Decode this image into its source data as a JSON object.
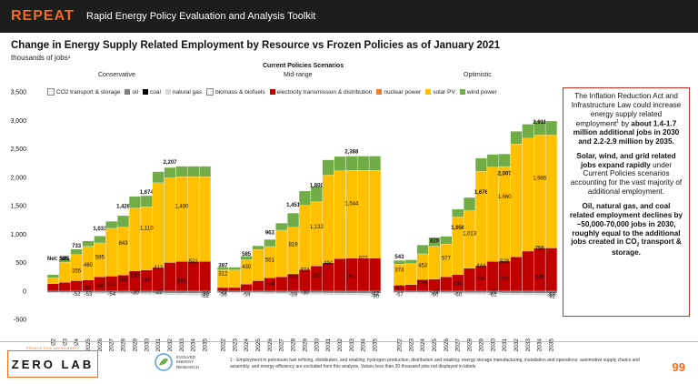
{
  "header": {
    "brand": "REPEAT",
    "subtitle": "Rapid Energy Policy Evaluation and Analysis Toolkit"
  },
  "title": "Change in Energy Supply Related Employment by Resource vs Frozen Policies as of January 2021",
  "units": "thousands of jobs¹",
  "scenarios_title": "Current Policies Scenarios",
  "colors": {
    "co2": "#ffffff",
    "oil": "#7f7f7f",
    "coal": "#000000",
    "gas": "#d9d9d9",
    "bio": "#f2f2f2",
    "elec": "#c00000",
    "nuclear": "#ed7d31",
    "solar": "#ffc000",
    "wind": "#70ad47",
    "accent": "#f26b21",
    "callout_border": "#c9302c"
  },
  "legend": [
    {
      "key": "co2",
      "label": "CO2 transport & storage"
    },
    {
      "key": "oil",
      "label": "oil"
    },
    {
      "key": "coal",
      "label": "coal"
    },
    {
      "key": "gas",
      "label": "natural gas"
    },
    {
      "key": "bio",
      "label": "biomass & biofuels"
    },
    {
      "key": "elec",
      "label": "electricity transmission & distribution"
    },
    {
      "key": "nuclear",
      "label": "nuclear power"
    },
    {
      "key": "solar",
      "label": "solar PV"
    },
    {
      "key": "wind",
      "label": "wind power"
    }
  ],
  "chart_data": {
    "type": "bar",
    "stacked": true,
    "waterfall_style": true,
    "ylim": [
      -500,
      3500
    ],
    "yticks": [
      -500,
      0,
      500,
      1000,
      1500,
      2000,
      2500,
      3000,
      3500
    ],
    "ytick_labels": [
      "-500",
      "0",
      "500",
      "1,000",
      "1,500",
      "2,000",
      "2,500",
      "3,000",
      "3,500"
    ],
    "categories": [
      "2022",
      "2023",
      "2024",
      "2025",
      "2026",
      "2027",
      "2028",
      "2029",
      "2030",
      "2031",
      "2032",
      "2033",
      "2034",
      "2035"
    ],
    "net_label": "Net: 505",
    "panels": [
      {
        "name": "Conservative",
        "net": [
          null,
          505,
          733,
          null,
          1033,
          null,
          1428,
          null,
          1674,
          null,
          2207,
          null,
          null,
          null
        ],
        "bars": [
          {
            "wind": 55,
            "solar": 100,
            "elec": 130,
            "nuclear": 20
          },
          {
            "wind": 55,
            "solar": 355,
            "elec": 150,
            "nuclear": 20
          },
          {
            "wind": 94,
            "solar": 460,
            "elec": 180
          },
          {
            "wind": 94,
            "solar": 595,
            "elec": 190
          },
          {
            "wind": 121,
            "solar": 595,
            "elec": 250
          },
          {
            "wind": 121,
            "solar": 843,
            "elec": 260
          },
          {
            "wind": 201,
            "solar": 843,
            "elec": 280
          },
          {
            "wind": 201,
            "solar": 1110,
            "elec": 350
          },
          {
            "wind": 195,
            "solar": 1110,
            "elec": 370
          },
          {
            "wind": 195,
            "solar": 1490,
            "elec": 412
          },
          {
            "wind": 181,
            "solar": 1490,
            "elec": 500
          },
          {
            "wind": 181,
            "solar": 1490,
            "elec": 521
          },
          {
            "wind": 181,
            "solar": 1490,
            "elec": 521
          },
          {
            "wind": 181,
            "solar": 1490,
            "elec": 521
          }
        ],
        "data_labels": [
          {
            "x": "2024",
            "y": 355,
            "text": "355"
          },
          {
            "x": "2024",
            "y": -52,
            "text": "-52"
          },
          {
            "x": "2025",
            "y": 460,
            "text": "460"
          },
          {
            "x": "2025",
            "y": -53,
            "text": "-53"
          },
          {
            "x": "2025",
            "y": 55,
            "text": "55"
          },
          {
            "x": "2026",
            "y": 595,
            "text": "595"
          },
          {
            "x": "2026",
            "y": 94,
            "text": "94"
          },
          {
            "x": "2027",
            "y": 121,
            "text": "121"
          },
          {
            "x": "2027",
            "y": -54,
            "text": "-54"
          },
          {
            "x": "2028",
            "y": 843,
            "text": "843"
          },
          {
            "x": "2028",
            "y": 201,
            "text": "201"
          },
          {
            "x": "2029",
            "y": -30,
            "text": "-30"
          },
          {
            "x": "2029",
            "y": 280,
            "text": "280"
          },
          {
            "x": "2030",
            "y": 1110,
            "text": "1,110"
          },
          {
            "x": "2030",
            "y": 195,
            "text": "195"
          },
          {
            "x": "2031",
            "y": 412,
            "text": "412"
          },
          {
            "x": "2031",
            "y": -22,
            "text": "-22"
          },
          {
            "x": "2033",
            "y": 1490,
            "text": "1,490"
          },
          {
            "x": "2033",
            "y": 181,
            "text": "181"
          },
          {
            "x": "2034",
            "y": 521,
            "text": "521"
          },
          {
            "x": "2035",
            "y": -82,
            "text": "-82"
          },
          {
            "x": "2035",
            "y": -50,
            "text": "-50"
          }
        ]
      },
      {
        "name": "Mid-range",
        "net": [
          387,
          null,
          585,
          null,
          963,
          null,
          1451,
          null,
          1800,
          null,
          null,
          2388,
          null,
          null
        ],
        "bars": [
          {
            "wind": 43,
            "solar": 312,
            "elec": 60
          },
          {
            "wind": 43,
            "solar": 312,
            "elec": 60
          },
          {
            "wind": 63,
            "solar": 430,
            "elec": 120
          },
          {
            "wind": 63,
            "solar": 551,
            "elec": 180
          },
          {
            "wind": 124,
            "solar": 551,
            "elec": 230
          },
          {
            "wind": 124,
            "solar": 819,
            "elec": 250
          },
          {
            "wind": 250,
            "solar": 819,
            "elec": 300
          },
          {
            "wind": 250,
            "solar": 1132,
            "elec": 374
          },
          {
            "wind": 267,
            "solar": 1132,
            "elec": 440
          },
          {
            "wind": 267,
            "solar": 1544,
            "elec": 494
          },
          {
            "wind": 250,
            "solar": 1544,
            "elec": 570
          },
          {
            "wind": 250,
            "solar": 1544,
            "elec": 577
          },
          {
            "wind": 250,
            "solar": 1544,
            "elec": 577
          },
          {
            "wind": 250,
            "solar": 1544,
            "elec": 577
          }
        ],
        "data_labels": [
          {
            "x": "2022",
            "y": 312,
            "text": "312"
          },
          {
            "x": "2022",
            "y": -21,
            "text": "-21"
          },
          {
            "x": "2022",
            "y": -56,
            "text": "-56"
          },
          {
            "x": "2024",
            "y": 430,
            "text": "430"
          },
          {
            "x": "2024",
            "y": -59,
            "text": "-59"
          },
          {
            "x": "2026",
            "y": 551,
            "text": "551"
          },
          {
            "x": "2026",
            "y": 124,
            "text": "124"
          },
          {
            "x": "2028",
            "y": 819,
            "text": "819"
          },
          {
            "x": "2028",
            "y": 250,
            "text": "250"
          },
          {
            "x": "2028",
            "y": -59,
            "text": "-59"
          },
          {
            "x": "2029",
            "y": 374,
            "text": "374"
          },
          {
            "x": "2029",
            "y": -30,
            "text": "-30"
          },
          {
            "x": "2030",
            "y": 1132,
            "text": "1,132"
          },
          {
            "x": "2030",
            "y": 267,
            "text": "267"
          },
          {
            "x": "2031",
            "y": 494,
            "text": "494"
          },
          {
            "x": "2033",
            "y": 1544,
            "text": "1,544"
          },
          {
            "x": "2033",
            "y": 250,
            "text": "250"
          },
          {
            "x": "2034",
            "y": 577,
            "text": "577"
          },
          {
            "x": "2035",
            "y": -90,
            "text": "-90"
          },
          {
            "x": "2035",
            "y": -42,
            "text": "-42"
          }
        ]
      },
      {
        "name": "Optimistic",
        "net": [
          543,
          null,
          null,
          820,
          null,
          1056,
          null,
          1676,
          null,
          2007,
          null,
          null,
          2911,
          null
        ],
        "bars": [
          {
            "wind": 63,
            "solar": 374,
            "elec": 100
          },
          {
            "wind": 63,
            "solar": 374,
            "elec": 110
          },
          {
            "wind": 154,
            "solar": 453,
            "elec": 200
          },
          {
            "wind": 154,
            "solar": 577,
            "elec": 210
          },
          {
            "wind": 134,
            "solar": 577,
            "elec": 250
          },
          {
            "wind": 134,
            "solar": 1013,
            "elec": 290
          },
          {
            "wind": 230,
            "solar": 1013,
            "elec": 400
          },
          {
            "wind": 230,
            "solar": 1660,
            "elec": 444
          },
          {
            "wind": 221,
            "solar": 1660,
            "elec": 520
          },
          {
            "wind": 221,
            "solar": 1660,
            "elec": 528
          },
          {
            "wind": 221,
            "solar": 1986,
            "elec": 600
          },
          {
            "wind": 246,
            "solar": 1986,
            "elec": 700
          },
          {
            "wind": 246,
            "solar": 1986,
            "elec": 756
          },
          {
            "wind": 246,
            "solar": 1986,
            "elec": 756
          }
        ],
        "data_labels": [
          {
            "x": "2022",
            "y": 374,
            "text": "374"
          },
          {
            "x": "2022",
            "y": 63,
            "text": "63"
          },
          {
            "x": "2022",
            "y": -57,
            "text": "-57"
          },
          {
            "x": "2024",
            "y": 453,
            "text": "453"
          },
          {
            "x": "2024",
            "y": 154,
            "text": "154"
          },
          {
            "x": "2025",
            "y": -60,
            "text": "-60"
          },
          {
            "x": "2025",
            "y": -23,
            "text": "-23"
          },
          {
            "x": "2026",
            "y": 577,
            "text": "577"
          },
          {
            "x": "2027",
            "y": 134,
            "text": "134"
          },
          {
            "x": "2027",
            "y": -60,
            "text": "-60"
          },
          {
            "x": "2028",
            "y": 1013,
            "text": "1,013"
          },
          {
            "x": "2029",
            "y": 230,
            "text": "230"
          },
          {
            "x": "2029",
            "y": 444,
            "text": "444"
          },
          {
            "x": "2030",
            "y": -21,
            "text": "-21"
          },
          {
            "x": "2030",
            "y": -61,
            "text": "-61"
          },
          {
            "x": "2031",
            "y": 1660,
            "text": "1,660"
          },
          {
            "x": "2031",
            "y": 221,
            "text": "221"
          },
          {
            "x": "2031",
            "y": 528,
            "text": "528"
          },
          {
            "x": "2034",
            "y": 1986,
            "text": "1,986"
          },
          {
            "x": "2034",
            "y": 246,
            "text": "246"
          },
          {
            "x": "2034",
            "y": 756,
            "text": "756"
          },
          {
            "x": "2035",
            "y": -92,
            "text": "-92"
          },
          {
            "x": "2035",
            "y": -58,
            "text": "-58"
          }
        ]
      }
    ]
  },
  "callout": {
    "p1_pre": "The Inflation Reduction Act and Infrastructure Law could increase energy supply related employment",
    "p1_sup": "1",
    "p1_mid": " by ",
    "p1_bold": "about 1.4-1.7 million additional jobs in 2030 and 2.2-2.9 million by 2035.",
    "p2_bold": "Solar, wind, and grid related jobs expand rapidly",
    "p2_rest": " under Current Policies scenarios accounting for the vast majority of additional employment.",
    "p3_bold": "Oil, natural gas, and coal related employment declines by ~50,000-70,000 jobs in 2030, roughly equal to the additional jobs created in CO",
    "p3_sub": "2",
    "p3_end": " transport & storage."
  },
  "footer": {
    "university": "PRINCETON UNIVERSITY",
    "lab": "ZERO LAB",
    "eer": [
      "EVOLVED",
      "ENERGY",
      "RESEARCH"
    ],
    "footnote": "1 - Employment in petroleum fuel refining, distribution, and retailing; hydrogen production, distribution and retailing; energy storage manufacturing, installation and operations; automotive supply chains and assembly; and energy efficiency are excluded from this analysis. Values less than 20 thousand jobs not displayed in labels",
    "page": "99"
  }
}
